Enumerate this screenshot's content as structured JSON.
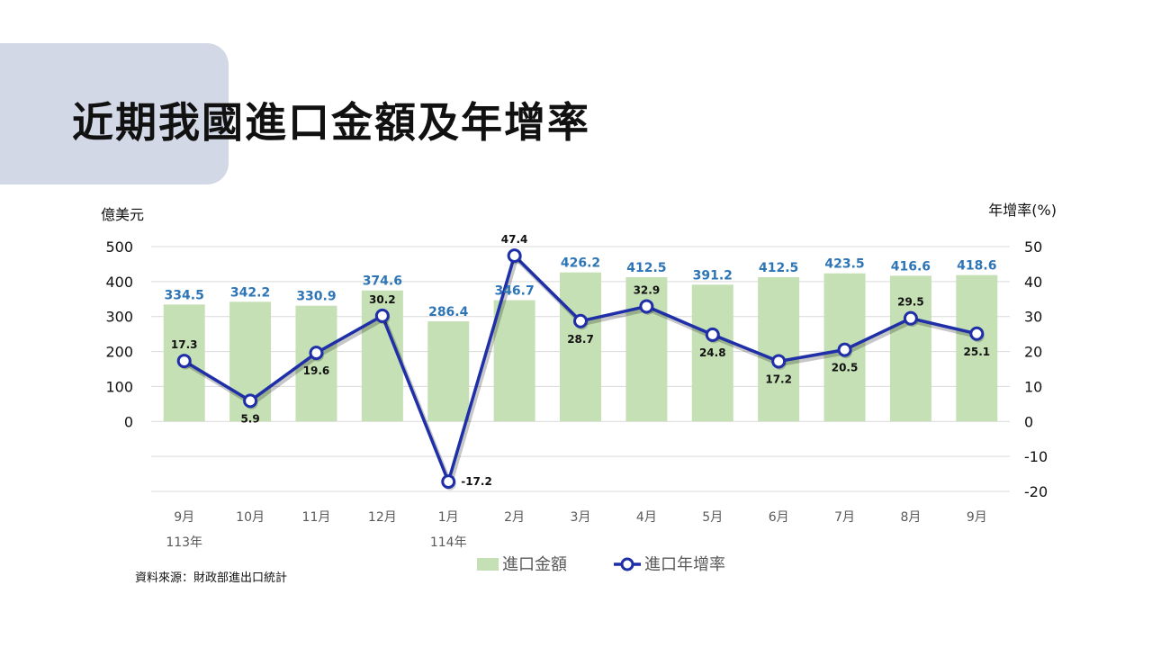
{
  "page": {
    "title": "近期我國進口金額及年增率",
    "source": "資料來源：財政部進出口統計"
  },
  "colors": {
    "bar": "#c5e0b4",
    "line": "#1f2fa8",
    "bar_label": "#2e75b6",
    "line_label": "#111111",
    "grid": "#d9d9d9",
    "title_bg": "#d3d8e7"
  },
  "chart_data": {
    "type": "bar+line",
    "categories": [
      "9月",
      "10月",
      "11月",
      "12月",
      "1月",
      "2月",
      "3月",
      "4月",
      "5月",
      "6月",
      "7月",
      "8月",
      "9月"
    ],
    "year_labels": [
      "113年",
      "",
      "",
      "",
      "114年",
      "",
      "",
      "",
      "",
      "",
      "",
      "",
      ""
    ],
    "left_axis": {
      "label": "億美元",
      "ticks": [
        0,
        100,
        200,
        300,
        400,
        500
      ],
      "range": [
        -200,
        500
      ]
    },
    "right_axis": {
      "label": "年增率(%)",
      "ticks": [
        -20,
        -10,
        0,
        10,
        20,
        30,
        40,
        50
      ],
      "range": [
        -20,
        50
      ]
    },
    "series": [
      {
        "name": "進口金額",
        "type": "bar",
        "axis": "left",
        "values": [
          334.5,
          342.2,
          330.9,
          374.6,
          286.4,
          346.7,
          426.2,
          412.5,
          391.2,
          412.5,
          423.5,
          416.6,
          418.6
        ]
      },
      {
        "name": "進口年增率",
        "type": "line",
        "axis": "right",
        "values": [
          17.3,
          5.9,
          19.6,
          30.2,
          -17.2,
          47.4,
          28.7,
          32.9,
          24.8,
          17.2,
          20.5,
          29.5,
          25.1
        ]
      }
    ],
    "legend_position": "bottom",
    "grid": true
  }
}
